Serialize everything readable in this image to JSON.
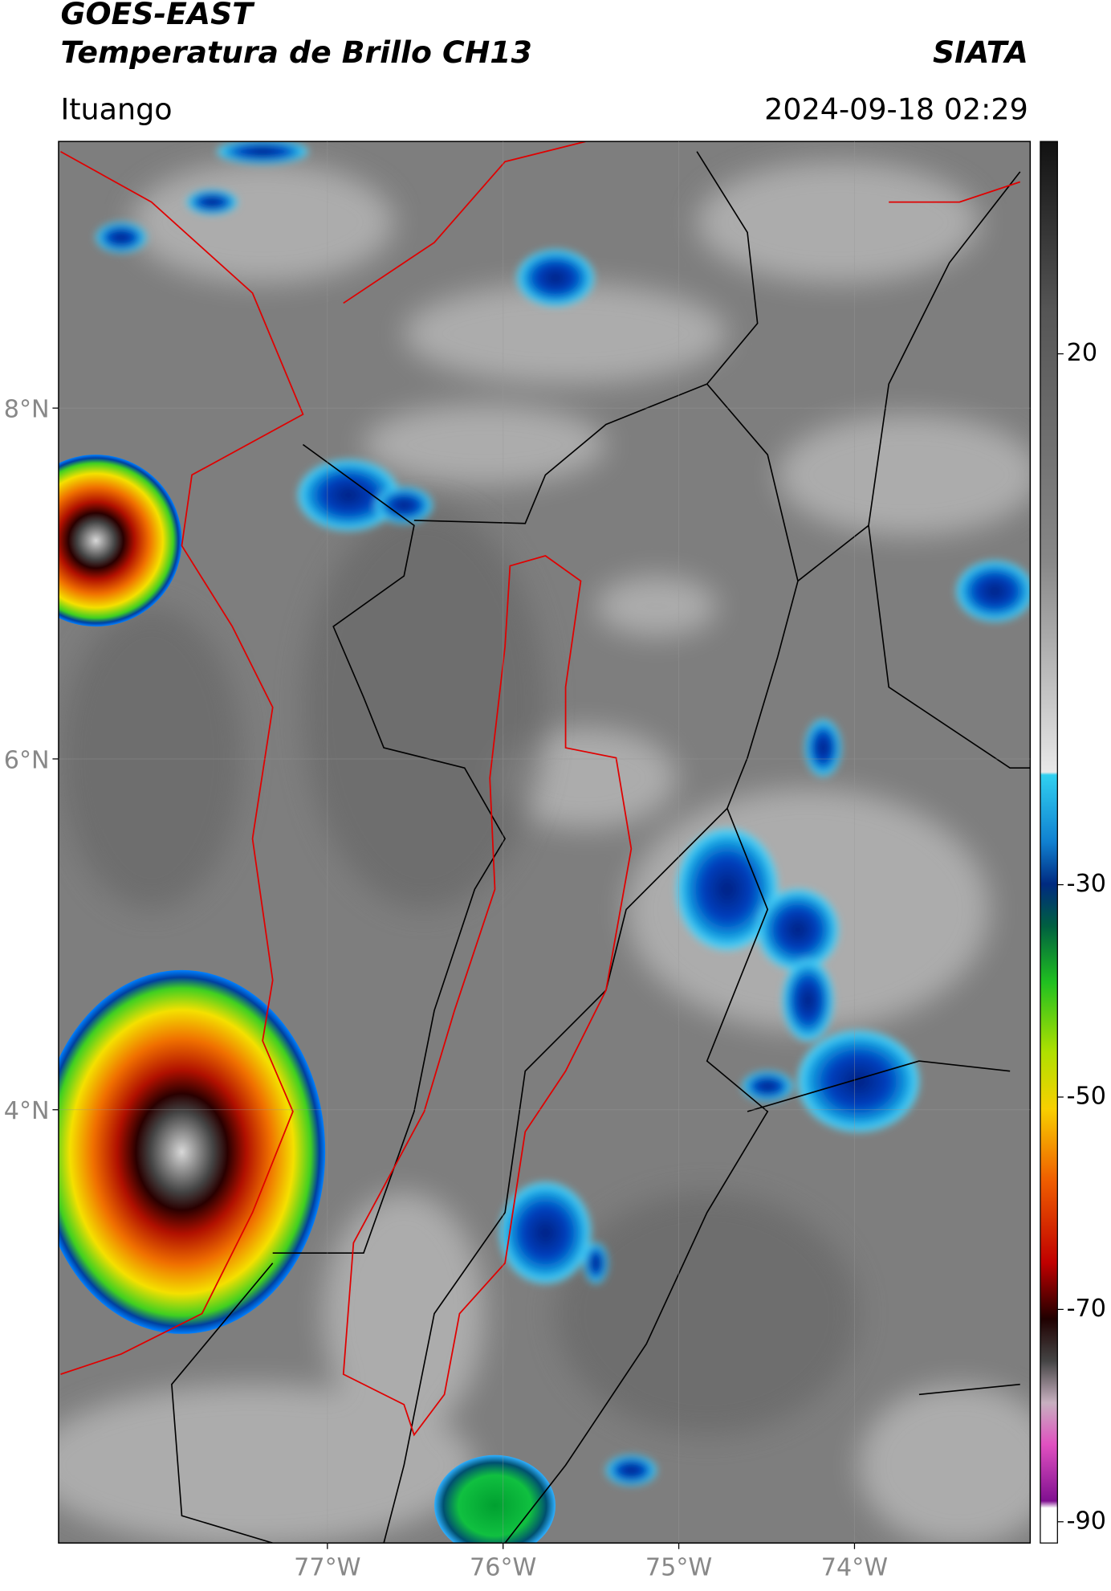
{
  "header": {
    "title": "GOES-EAST",
    "subtitle": "Temperatura de Brillo CH13",
    "brand": "SIATA",
    "location": "Ituango",
    "datetime": "2024-09-18 02:29"
  },
  "map": {
    "lat_range": [
      1.53,
      9.52
    ],
    "lon_range": [
      -78.53,
      -73.0
    ],
    "lat_ticks": [
      {
        "value": 8,
        "label": "8°N"
      },
      {
        "value": 6,
        "label": "6°N"
      },
      {
        "value": 4,
        "label": "4°N"
      }
    ],
    "lon_ticks": [
      {
        "value": -77,
        "label": "77°W"
      },
      {
        "value": -76,
        "label": "76°W"
      },
      {
        "value": -75,
        "label": "75°W"
      },
      {
        "value": -74,
        "label": "74°W"
      }
    ]
  },
  "colorbar": {
    "range": [
      -92,
      40
    ],
    "ticks": [
      20,
      -30,
      -50,
      -70,
      -90
    ]
  }
}
